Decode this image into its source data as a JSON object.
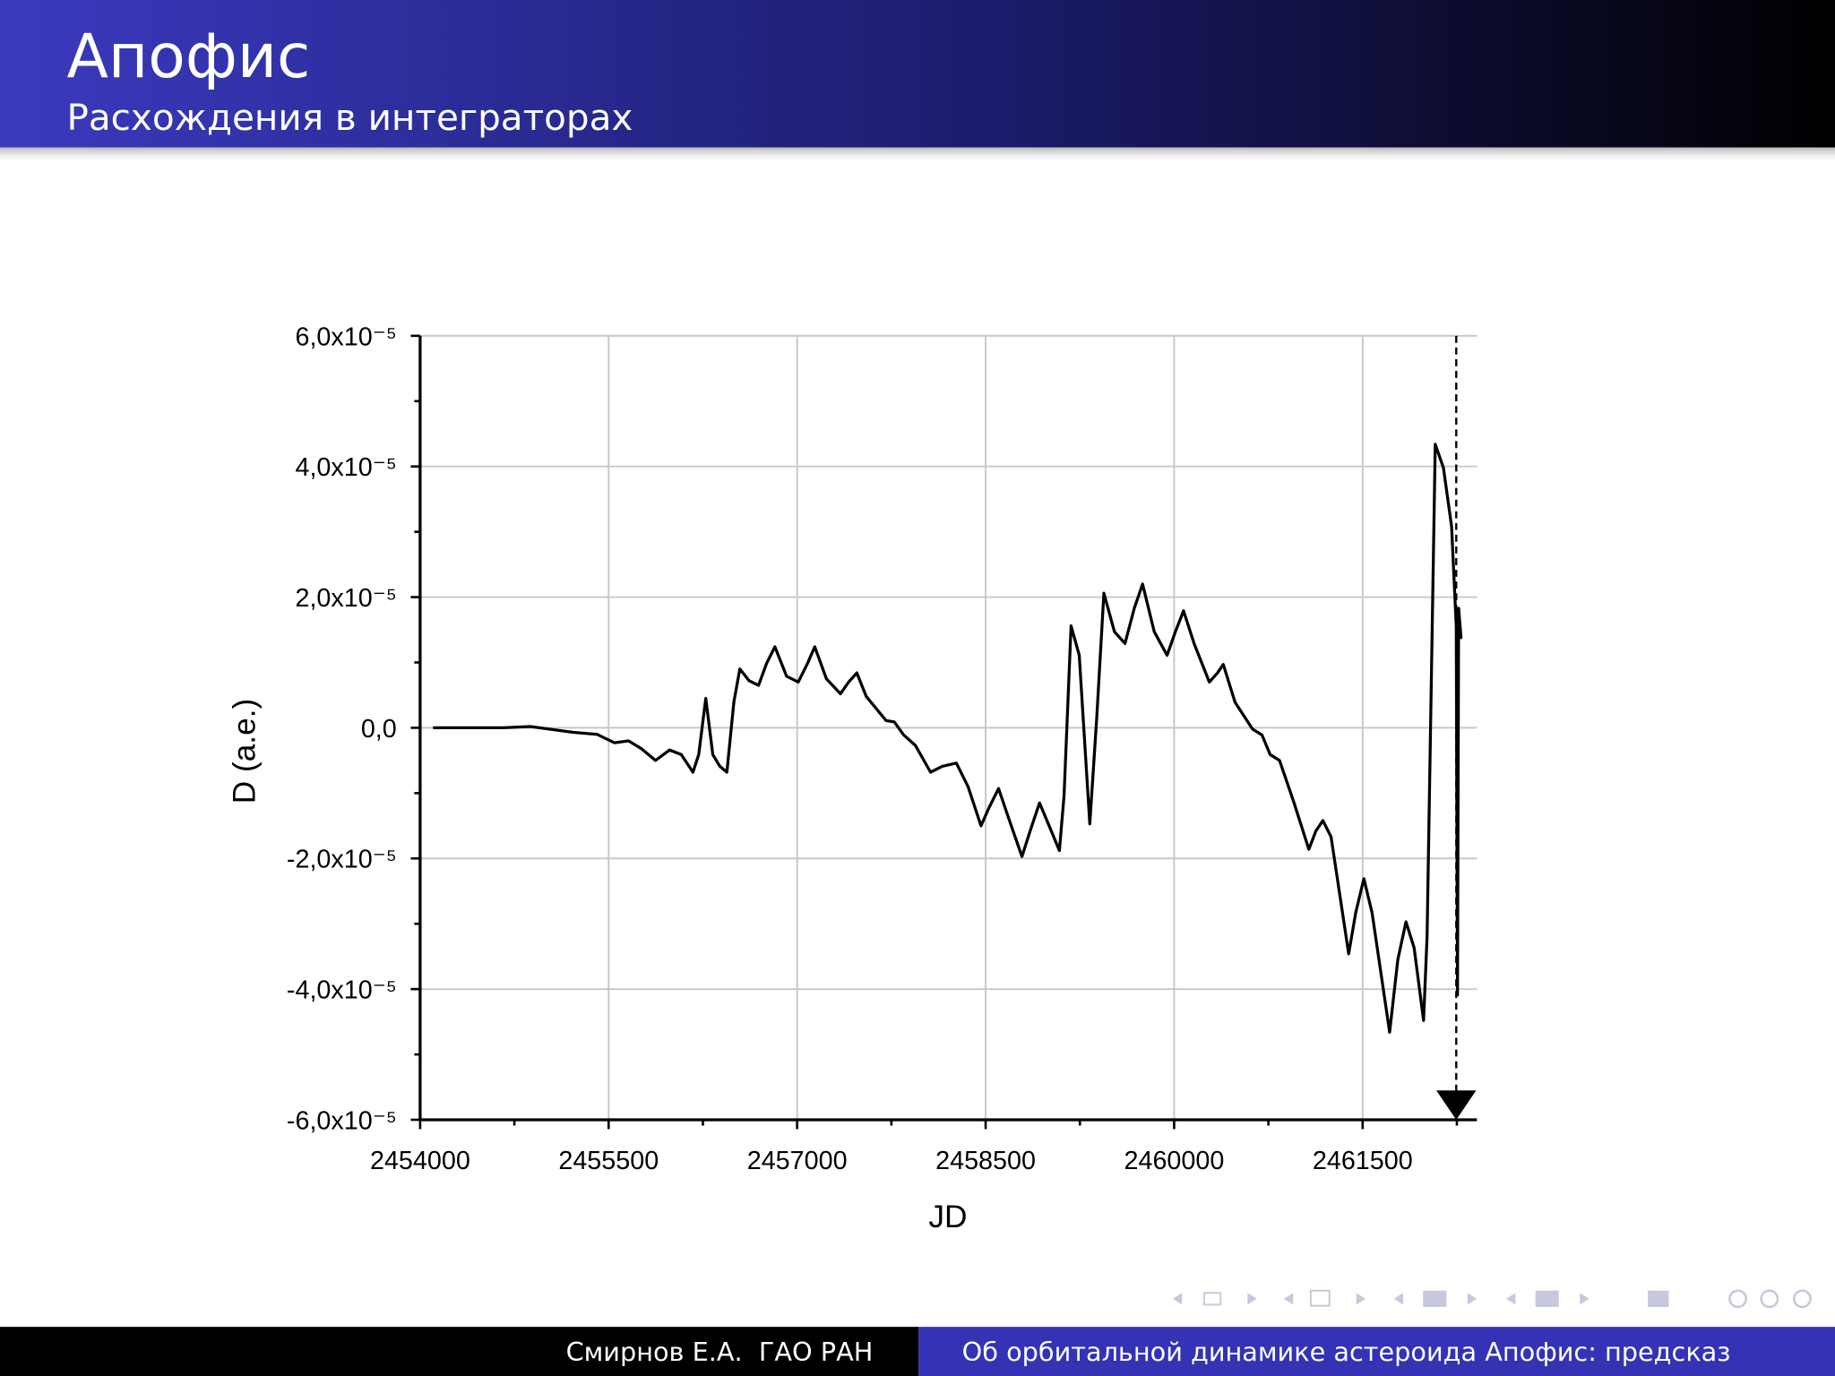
{
  "header": {
    "title": "Апофис",
    "subtitle": "Расхождения в интеграторах"
  },
  "footer": {
    "left": "Смирнов Е.А.  ГАО РАН",
    "right": "Об орбитальной динамике астероида Апофис: предсказ"
  },
  "chart_data": {
    "type": "line",
    "xlabel": "JD",
    "ylabel": "D (а.е.)",
    "color": "#000000",
    "grid": true,
    "xlim": [
      2454000,
      2462400
    ],
    "ylim": [
      -6e-05,
      6e-05
    ],
    "xticks": [
      2454000,
      2455500,
      2457000,
      2458500,
      2460000,
      2461500
    ],
    "xminorticks": [
      2454750,
      2456250,
      2457750,
      2459250,
      2460750,
      2462250
    ],
    "yticks": [
      {
        "value": 6e-05,
        "label": "6,0x10⁻⁵"
      },
      {
        "value": 4e-05,
        "label": "4,0x10⁻⁵"
      },
      {
        "value": 2e-05,
        "label": "2,0x10⁻⁵"
      },
      {
        "value": 0,
        "label": "0,0"
      },
      {
        "value": -2e-05,
        "label": "-2,0x10⁻⁵"
      },
      {
        "value": -4e-05,
        "label": "-4,0x10⁻⁵"
      },
      {
        "value": -6e-05,
        "label": "-6,0x10⁻⁵"
      }
    ],
    "yminorticks": [
      5e-05,
      3e-05,
      1e-05,
      -1e-05,
      -3e-05,
      -5e-05
    ],
    "vline_x": 2462245,
    "x": [
      2454112,
      2454662,
      2454876,
      2455220,
      2455407,
      2455547,
      2455658,
      2455761,
      2455873,
      2455985,
      2456078,
      2456171,
      2456217,
      2456273,
      2456329,
      2456385,
      2456441,
      2456497,
      2456544,
      2456618,
      2456693,
      2456758,
      2456823,
      2456916,
      2457009,
      2457084,
      2457140,
      2457233,
      2457345,
      2457410,
      2457475,
      2457550,
      2457708,
      2457773,
      2457848,
      2457941,
      2458062,
      2458155,
      2458267,
      2458360,
      2458463,
      2458528,
      2458603,
      2458686,
      2458789,
      2458854,
      2458929,
      2459003,
      2459087,
      2459124,
      2459180,
      2459245,
      2459329,
      2459385,
      2459441,
      2459525,
      2459609,
      2459683,
      2459749,
      2459842,
      2459944,
      2460010,
      2460075,
      2460159,
      2460280,
      2460345,
      2460391,
      2460485,
      2460624,
      2460699,
      2460764,
      2460839,
      2460951,
      2461072,
      2461128,
      2461184,
      2461249,
      2461389,
      2461445,
      2461510,
      2461575,
      2461715,
      2461780,
      2461845,
      2461910,
      2461985,
      2462013,
      2462078,
      2462143,
      2462208,
      2462245,
      2462255,
      2462264,
      2462283
    ],
    "values": [
      0,
      0,
      2e-07,
      -7e-07,
      -1e-06,
      -2.3e-06,
      -2e-06,
      -3.2e-06,
      -5e-06,
      -3.4e-06,
      -4.1e-06,
      -6.8e-06,
      -4.1e-06,
      4.5e-06,
      -4.1e-06,
      -5.9e-06,
      -6.8e-06,
      4e-06,
      9e-06,
      7.2e-06,
      6.5e-06,
      9.9e-06,
      1.24e-05,
      7.9e-06,
      7e-06,
      9.9e-06,
      1.24e-05,
      7.5e-06,
      5.2e-06,
      7e-06,
      8.4e-06,
      4.8e-06,
      1.1e-06,
      9e-07,
      -1.1e-06,
      -2.7e-06,
      -6.8e-06,
      -5.9e-06,
      -5.4e-06,
      -9e-06,
      -1.5e-05,
      -1.22e-05,
      -9.3e-06,
      -1.4e-05,
      -1.97e-05,
      -1.58e-05,
      -1.15e-05,
      -1.49e-05,
      -1.88e-05,
      -1.04e-05,
      1.56e-05,
      1.11e-05,
      -1.47e-05,
      1.8e-06,
      2.06e-05,
      1.47e-05,
      1.29e-05,
      1.83e-05,
      2.2e-05,
      1.47e-05,
      1.11e-05,
      1.47e-05,
      1.79e-05,
      1.29e-05,
      7e-06,
      8.4e-06,
      9.7e-06,
      3.9e-06,
      -2e-07,
      -1.1e-06,
      -4.1e-06,
      -5e-06,
      -1.13e-05,
      -1.86e-05,
      -1.58e-05,
      -1.42e-05,
      -1.67e-05,
      -3.46e-05,
      -2.83e-05,
      -2.31e-05,
      -2.83e-05,
      -4.66e-05,
      -3.55e-05,
      -2.97e-05,
      -3.37e-05,
      -4.48e-05,
      -3.19e-05,
      4.34e-05,
      3.98e-05,
      3.08e-05,
      1.56e-05,
      -4.09e-05,
      1.83e-05,
      1.38e-05
    ]
  }
}
